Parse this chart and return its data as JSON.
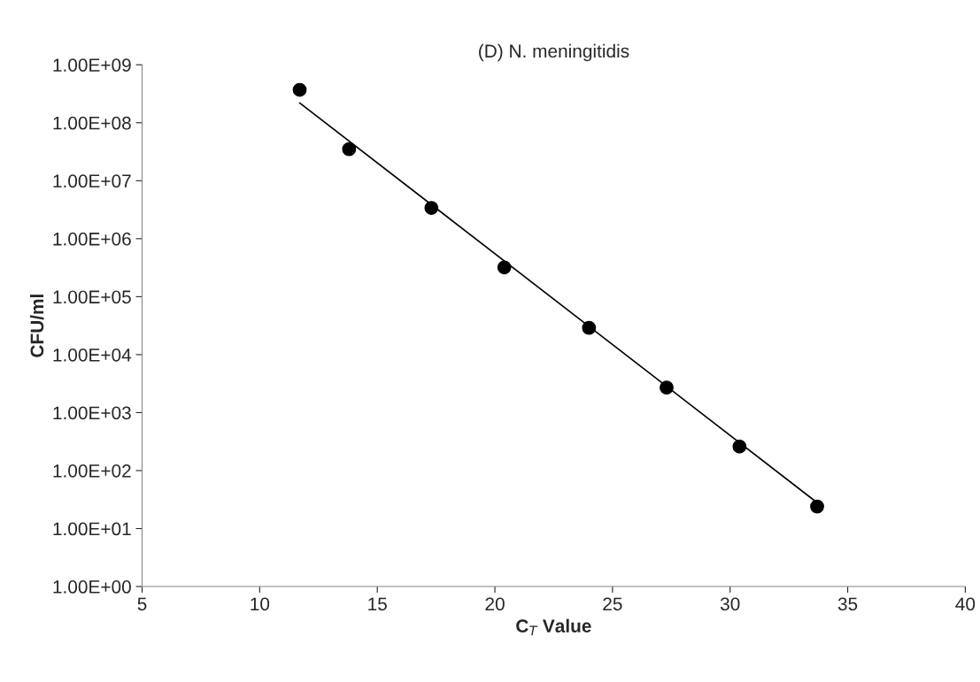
{
  "chart_data": {
    "type": "scatter",
    "title": "(D) N. meningitidis",
    "xlabel": "C$_{T}$ Value",
    "ylabel": "CFU/ml",
    "x": [
      11.7,
      13.8,
      17.3,
      20.4,
      24.0,
      27.3,
      30.4,
      33.7
    ],
    "series": [
      {
        "color": "#000000",
        "marker": "circle",
        "values": [
          370000000,
          35000000,
          3400000,
          320000,
          29000,
          2700,
          260,
          24
        ]
      },
      {
        "type": "line",
        "color": "#000000",
        "marker": "none",
        "line_style": "solid",
        "x": [
          11.7,
          33.7
        ],
        "values": [
          220000000,
          28
        ]
      }
    ],
    "log": "y",
    "grid": false,
    "legend": false,
    "xlim": [
      5,
      40
    ],
    "xticks": [
      5,
      10,
      15,
      20,
      25,
      30,
      35,
      40
    ],
    "ylim": [
      1,
      1000000000
    ],
    "yticks": [
      {
        "value": 1,
        "label": "1.00E+00"
      },
      {
        "value": 10,
        "label": "1.00E+01"
      },
      {
        "value": 100,
        "label": "1.00E+02"
      },
      {
        "value": 1000,
        "label": "1.00E+03"
      },
      {
        "value": 10000,
        "label": "1.00E+04"
      },
      {
        "value": 100000,
        "label": "1.00E+05"
      },
      {
        "value": 1000000,
        "label": "1.00E+06"
      },
      {
        "value": 10000000,
        "label": "1.00E+07"
      },
      {
        "value": 100000000,
        "label": "1.00E+08"
      },
      {
        "value": 1000000000,
        "label": "1.00E+09"
      }
    ]
  }
}
